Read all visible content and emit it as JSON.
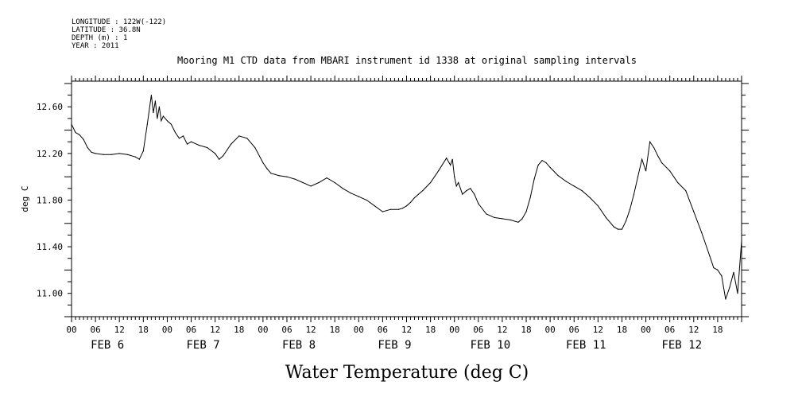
{
  "meta": {
    "longitude": "LONGITUDE : 122W(-122)",
    "latitude": "LATITUDE : 36.8N",
    "depth": "DEPTH (m) : 1",
    "year": "YEAR : 2011"
  },
  "chart_data": {
    "type": "line",
    "title": "Mooring M1 CTD data from MBARI instrument id 1338 at original sampling intervals",
    "ylabel": "deg C",
    "xlabel": "Water Temperature (deg C)",
    "ylim": [
      10.8,
      12.82
    ],
    "xlim_hours": [
      0,
      168
    ],
    "y_ticks": [
      "12.60",
      "12.20",
      "11.80",
      "11.40",
      "11.00"
    ],
    "y_tick_values": [
      12.6,
      12.2,
      11.8,
      11.4,
      11.0
    ],
    "x_hour_labels": [
      "00",
      "06",
      "12",
      "18"
    ],
    "day_labels": [
      "FEB  6",
      "FEB  7",
      "FEB  8",
      "FEB  9",
      "FEB 10",
      "FEB 11",
      "FEB 12"
    ],
    "grid": false,
    "series": [
      {
        "x_hours": [
          0,
          1,
          2,
          3,
          4,
          5,
          6,
          8,
          10,
          12,
          14,
          16,
          17,
          18,
          19,
          20,
          20.5,
          21,
          21.5,
          22,
          22.5,
          23,
          24,
          25,
          26,
          27,
          28,
          29,
          30,
          32,
          34,
          36,
          37,
          38,
          39,
          40,
          42,
          44,
          46,
          48,
          49,
          50,
          51,
          52,
          54,
          56,
          58,
          60,
          62,
          64,
          66,
          68,
          70,
          72,
          74,
          76,
          78,
          80,
          82,
          83,
          84,
          85,
          86,
          88,
          90,
          92,
          94,
          95,
          95.5,
          96,
          96.5,
          97,
          98,
          99,
          100,
          101,
          102,
          104,
          106,
          108,
          110,
          112,
          113,
          114,
          115,
          116,
          117,
          118,
          119,
          120,
          122,
          124,
          126,
          128,
          130,
          132,
          134,
          136,
          137,
          138,
          139,
          140,
          141,
          142,
          143,
          144,
          145,
          146,
          147,
          148,
          150,
          152,
          154,
          156,
          158,
          160,
          161,
          162,
          163,
          164,
          165,
          166,
          167,
          168
        ],
        "values": [
          12.45,
          12.38,
          12.36,
          12.32,
          12.25,
          12.21,
          12.2,
          12.19,
          12.19,
          12.2,
          12.19,
          12.17,
          12.15,
          12.22,
          12.45,
          12.7,
          12.55,
          12.65,
          12.5,
          12.6,
          12.48,
          12.52,
          12.48,
          12.45,
          12.38,
          12.33,
          12.35,
          12.28,
          12.3,
          12.27,
          12.25,
          12.2,
          12.15,
          12.18,
          12.23,
          12.28,
          12.35,
          12.33,
          12.25,
          12.12,
          12.07,
          12.03,
          12.02,
          12.01,
          12.0,
          11.98,
          11.95,
          11.92,
          11.95,
          11.99,
          11.95,
          11.9,
          11.86,
          11.83,
          11.8,
          11.75,
          11.7,
          11.72,
          11.72,
          11.73,
          11.75,
          11.78,
          11.82,
          11.88,
          11.95,
          12.05,
          12.16,
          12.1,
          12.15,
          12.0,
          11.92,
          11.95,
          11.85,
          11.88,
          11.9,
          11.85,
          11.77,
          11.68,
          11.65,
          11.64,
          11.63,
          11.61,
          11.64,
          11.7,
          11.82,
          11.98,
          12.1,
          12.14,
          12.12,
          12.08,
          12.01,
          11.96,
          11.92,
          11.88,
          11.82,
          11.75,
          11.65,
          11.57,
          11.55,
          11.55,
          11.62,
          11.72,
          11.85,
          12.0,
          12.15,
          12.05,
          12.3,
          12.25,
          12.18,
          12.12,
          12.05,
          11.95,
          11.88,
          11.7,
          11.52,
          11.32,
          11.22,
          11.2,
          11.15,
          10.95,
          11.05,
          11.18,
          11.0,
          11.45
        ]
      }
    ]
  }
}
